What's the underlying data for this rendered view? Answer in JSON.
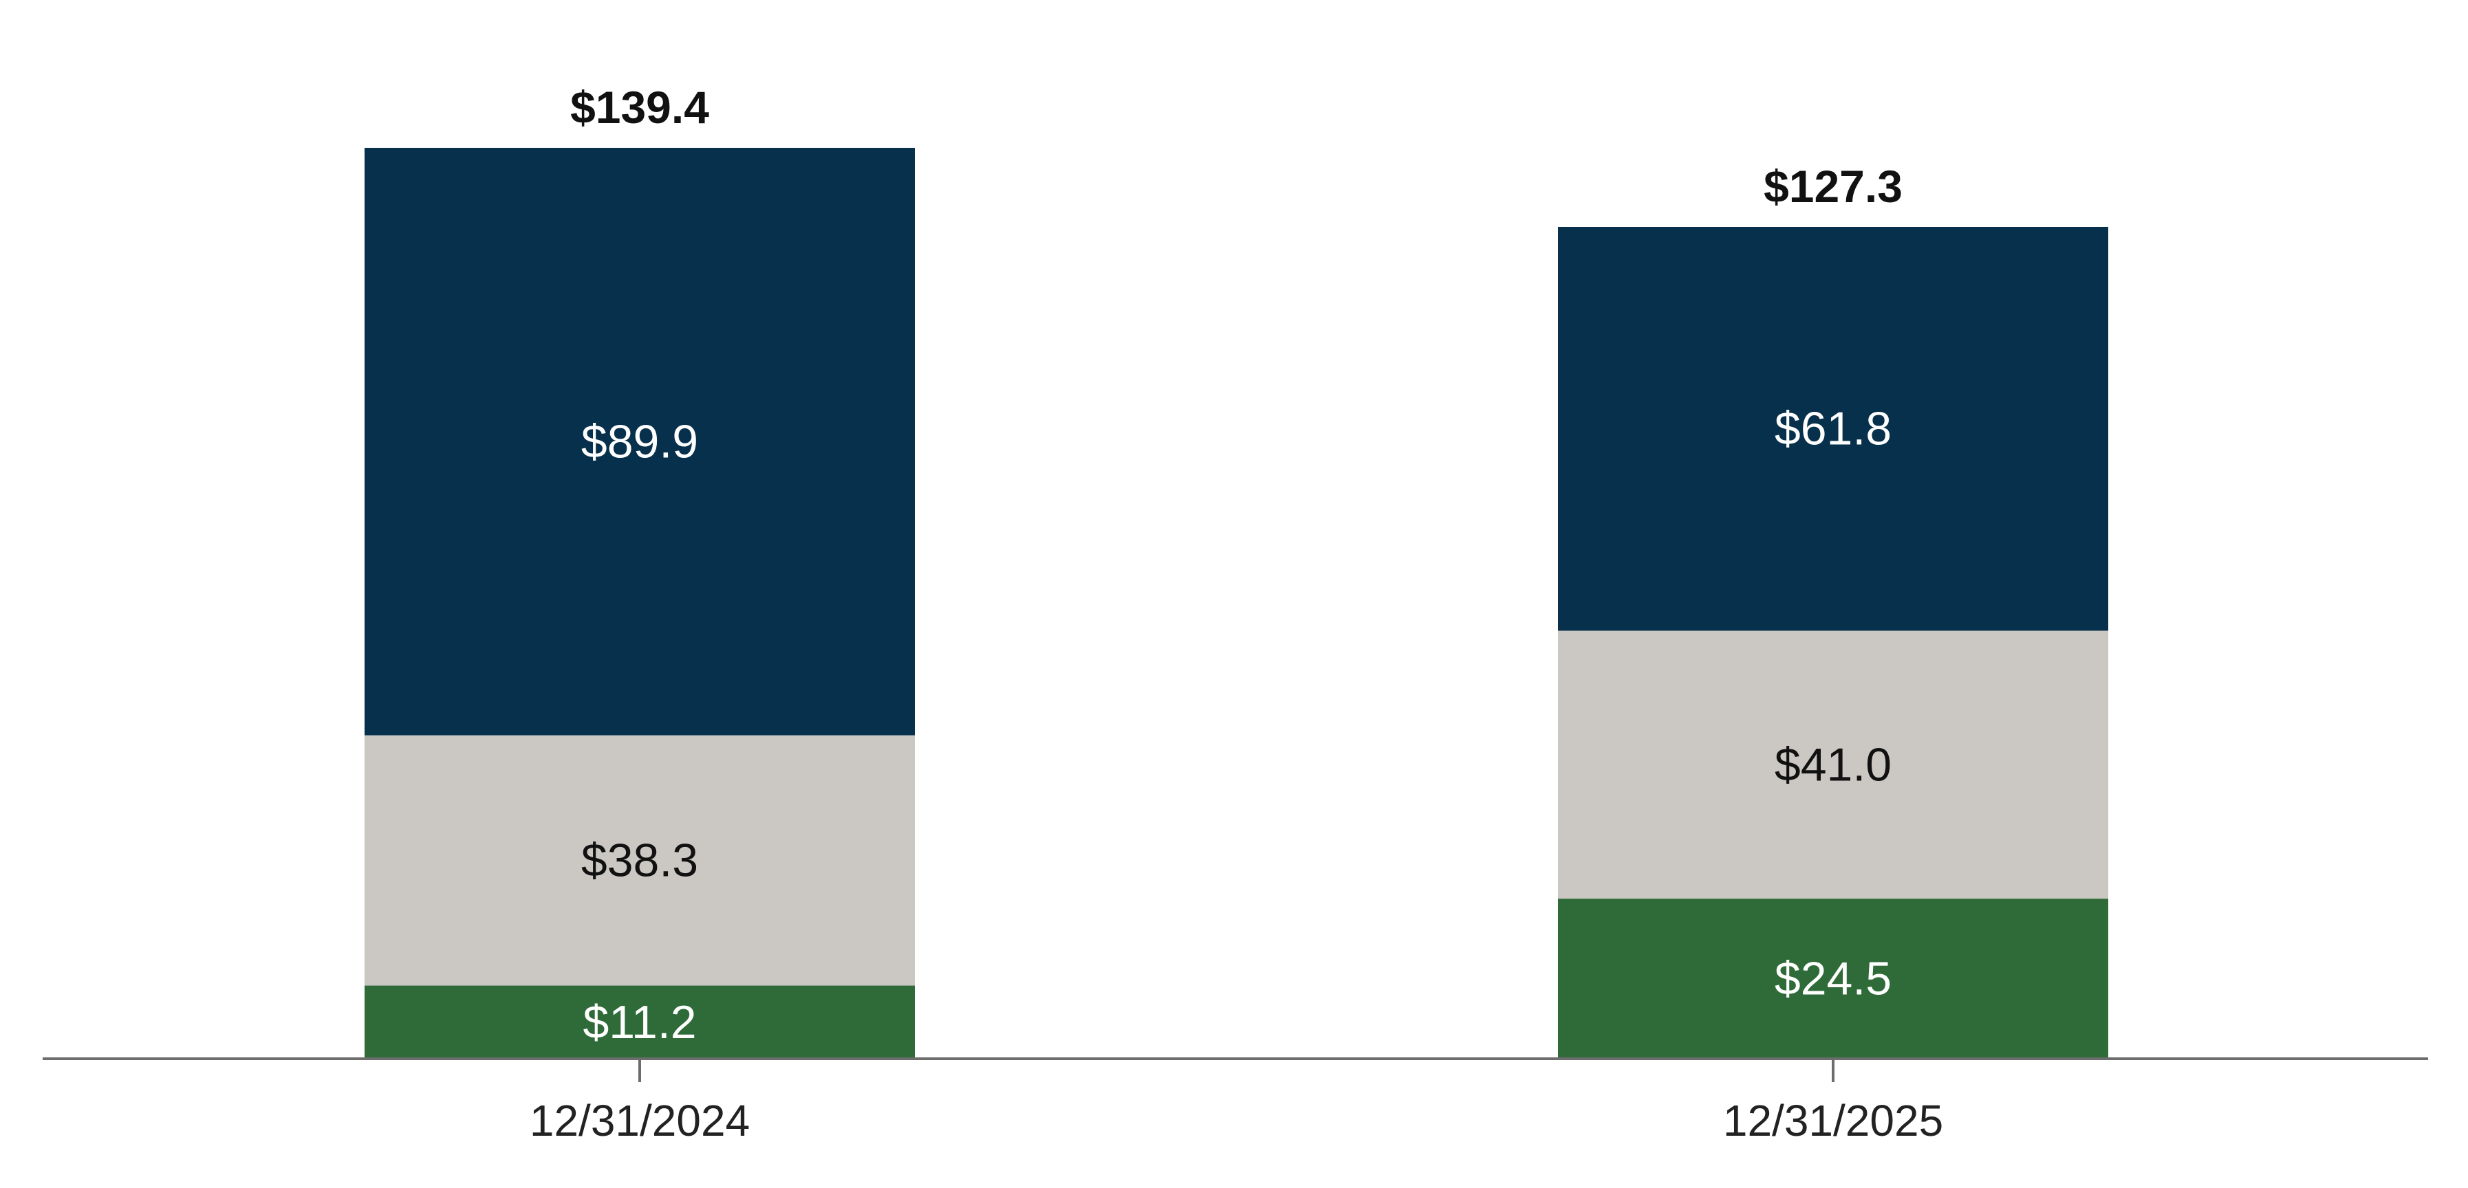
{
  "chart_data": {
    "type": "bar",
    "stacked": true,
    "categories": [
      "12/31/2024",
      "12/31/2025"
    ],
    "series": [
      {
        "values": [
          11.2,
          24.5
        ],
        "labels": [
          "$11.2",
          "$24.5"
        ],
        "color": "#2f6b38",
        "label_color": "#ffffff"
      },
      {
        "values": [
          38.3,
          41.0
        ],
        "labels": [
          "$38.3",
          "$41.0"
        ],
        "color": "#cbc8c3",
        "label_color": "#111111"
      },
      {
        "values": [
          89.9,
          61.8
        ],
        "labels": [
          "$89.9",
          "$61.8"
        ],
        "color": "#06304b",
        "label_color": "#ffffff"
      }
    ],
    "totals": [
      139.4,
      127.3
    ],
    "total_labels": [
      "$139.4",
      "$127.3"
    ],
    "ylim": [
      0,
      139.4
    ],
    "grid": false,
    "legend": "none",
    "axis_color": "#6d6d6d"
  }
}
